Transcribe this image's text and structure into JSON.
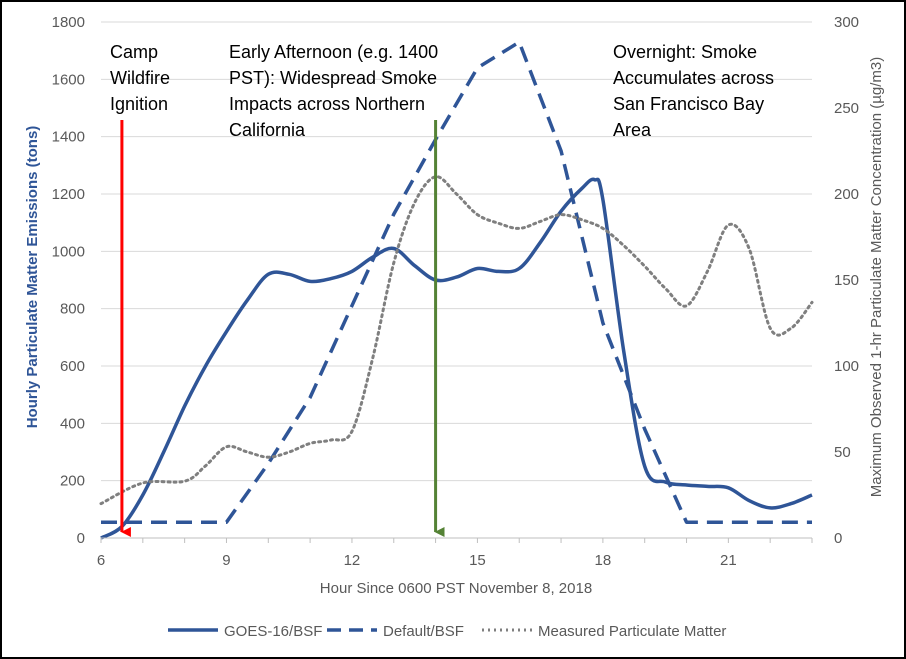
{
  "chart_data": {
    "type": "line",
    "xlabel": "Hour Since 0600 PST November 8, 2018",
    "ylabel": "Hourly Particulate Matter Emissions (tons)",
    "y2label": "Maximum Observed 1-hr Particulate Matter Concentration (µg/m3)",
    "xlim": [
      6,
      23
    ],
    "ylim": [
      0,
      1800
    ],
    "y2lim": [
      0,
      300
    ],
    "x_ticks": [
      6,
      9,
      12,
      15,
      18,
      21
    ],
    "y_ticks": [
      0,
      200,
      400,
      600,
      800,
      1000,
      1200,
      1400,
      1600,
      1800
    ],
    "y2_ticks": [
      0,
      50,
      100,
      150,
      200,
      250,
      300
    ],
    "grid": "horizontal",
    "legend": "bottom",
    "series": [
      {
        "name": "GOES-16/BSF",
        "axis": "left",
        "style": "solid",
        "color": "#2f5597",
        "x": [
          6,
          6.5,
          7,
          7.5,
          8,
          8.5,
          9,
          9.5,
          10,
          10.5,
          11,
          11.5,
          12,
          12.5,
          13,
          13.5,
          14,
          14.5,
          15,
          15.5,
          16,
          16.5,
          17,
          17.5,
          17.8,
          18,
          18.5,
          19,
          19.5,
          20,
          20.5,
          21,
          21.5,
          22,
          22.5,
          23
        ],
        "y": [
          0,
          40,
          150,
          300,
          460,
          600,
          720,
          830,
          920,
          920,
          895,
          905,
          930,
          980,
          1010,
          950,
          900,
          910,
          940,
          930,
          940,
          1030,
          1140,
          1220,
          1250,
          1180,
          650,
          250,
          195,
          185,
          180,
          175,
          130,
          105,
          120,
          150
        ]
      },
      {
        "name": "Default/BSF",
        "axis": "left",
        "style": "dashed",
        "color": "#2f5597",
        "x": [
          6,
          9,
          10,
          11,
          12,
          13,
          14,
          15,
          16,
          17,
          18,
          19,
          20,
          23
        ],
        "y": [
          55,
          55,
          260,
          490,
          810,
          1130,
          1390,
          1640,
          1730,
          1350,
          750,
          380,
          55,
          55
        ]
      },
      {
        "name": "Measured Particulate Matter",
        "axis": "right",
        "style": "dotted",
        "color": "#7f7f7f",
        "x": [
          6,
          7,
          8,
          8.5,
          9,
          9.5,
          10,
          10.5,
          11,
          11.5,
          12,
          12.5,
          13,
          13.5,
          14,
          14.5,
          15,
          15.5,
          16,
          16.5,
          17,
          17.5,
          18,
          18.5,
          19,
          19.5,
          20,
          20.5,
          21,
          21.5,
          22,
          22.5,
          23
        ],
        "y": [
          20,
          32,
          33,
          42,
          53,
          50,
          47,
          50,
          55,
          57,
          62,
          105,
          160,
          195,
          210,
          200,
          188,
          183,
          180,
          184,
          188,
          185,
          180,
          170,
          158,
          145,
          135,
          155,
          182,
          168,
          122,
          122,
          137
        ]
      }
    ],
    "markers": [
      {
        "x": 6.5,
        "color": "#ff0000",
        "label": "Camp Wildfire Ignition"
      },
      {
        "x": 14,
        "color": "#548235",
        "label": "Early Afternoon (e.g. 1400 PST): Widespread Smoke Impacts across Northern California"
      }
    ],
    "annotations": {
      "ignition": [
        "Camp",
        "Wildfire",
        "Ignition"
      ],
      "afternoon": [
        "Early Afternoon (e.g. 1400",
        "PST):  Widespread Smoke",
        "Impacts across Northern",
        "California"
      ],
      "overnight": [
        "Overnight: Smoke",
        "Accumulates across",
        "San Francisco Bay",
        "Area"
      ]
    }
  }
}
